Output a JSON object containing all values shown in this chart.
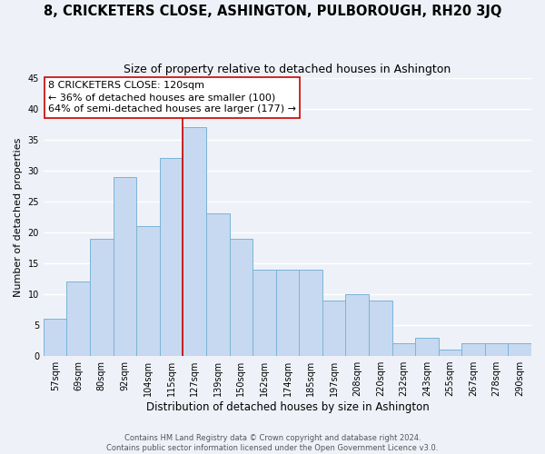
{
  "title": "8, CRICKETERS CLOSE, ASHINGTON, PULBOROUGH, RH20 3JQ",
  "subtitle": "Size of property relative to detached houses in Ashington",
  "xlabel": "Distribution of detached houses by size in Ashington",
  "ylabel": "Number of detached properties",
  "bar_labels": [
    "57sqm",
    "69sqm",
    "80sqm",
    "92sqm",
    "104sqm",
    "115sqm",
    "127sqm",
    "139sqm",
    "150sqm",
    "162sqm",
    "174sqm",
    "185sqm",
    "197sqm",
    "208sqm",
    "220sqm",
    "232sqm",
    "243sqm",
    "255sqm",
    "267sqm",
    "278sqm",
    "290sqm"
  ],
  "bar_values": [
    6,
    12,
    19,
    29,
    21,
    32,
    37,
    23,
    19,
    14,
    14,
    14,
    9,
    10,
    9,
    2,
    3,
    1,
    2,
    2,
    2
  ],
  "bar_color": "#c6d9f0",
  "bar_edge_color": "#7ab4d8",
  "vline_x": 5.5,
  "vline_color": "#cc0000",
  "annotation_line1": "8 CRICKETERS CLOSE: 120sqm",
  "annotation_line2": "← 36% of detached houses are smaller (100)",
  "annotation_line3": "64% of semi-detached houses are larger (177) →",
  "ylim": [
    0,
    45
  ],
  "yticks": [
    0,
    5,
    10,
    15,
    20,
    25,
    30,
    35,
    40,
    45
  ],
  "footer1": "Contains HM Land Registry data © Crown copyright and database right 2024.",
  "footer2": "Contains public sector information licensed under the Open Government Licence v3.0.",
  "background_color": "#eef2f8",
  "grid_color": "#ffffff",
  "title_fontsize": 10.5,
  "subtitle_fontsize": 9,
  "xlabel_fontsize": 8.5,
  "ylabel_fontsize": 8,
  "tick_fontsize": 7,
  "annotation_fontsize": 8,
  "footer_fontsize": 6
}
